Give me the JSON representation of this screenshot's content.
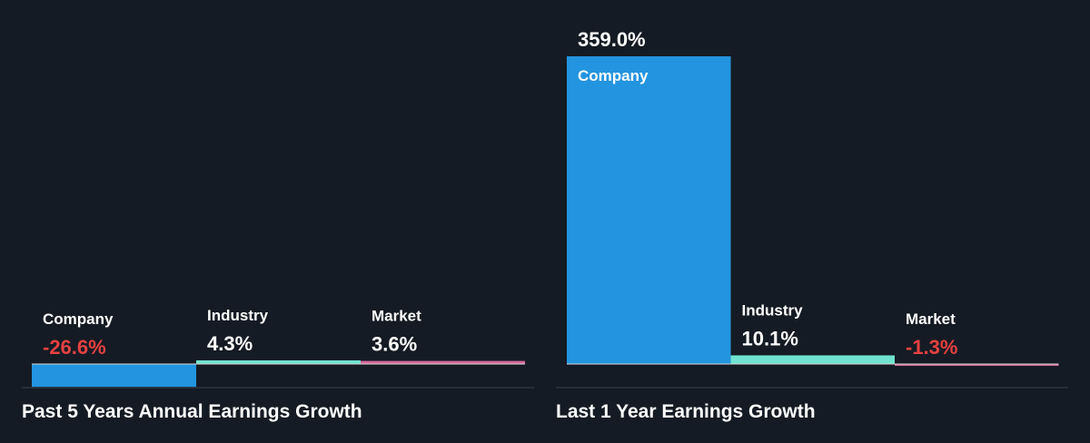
{
  "colors": {
    "background": "#151b24",
    "company": "#2394df",
    "industry": "#6fe3cf",
    "market": "#d6689c",
    "positive_text": "#ffffff",
    "negative_text": "#e64141",
    "baseline": "#d6d6d6",
    "separator": "#3a424d"
  },
  "chart_data": [
    {
      "type": "bar",
      "title": "Past 5 Years Annual Earnings Growth",
      "categories": [
        "Company",
        "Industry",
        "Market"
      ],
      "values": [
        -26.6,
        4.3,
        3.6
      ],
      "value_labels": [
        "-26.6%",
        "4.3%",
        "3.6%"
      ],
      "unit": "%",
      "ylim": [
        -30,
        405
      ]
    },
    {
      "type": "bar",
      "title": "Last 1 Year Earnings Growth",
      "categories": [
        "Company",
        "Industry",
        "Market"
      ],
      "values": [
        359.0,
        10.1,
        -1.3
      ],
      "value_labels": [
        "359.0%",
        "10.1%",
        "-1.3%"
      ],
      "unit": "%",
      "ylim": [
        -30,
        405
      ]
    }
  ]
}
